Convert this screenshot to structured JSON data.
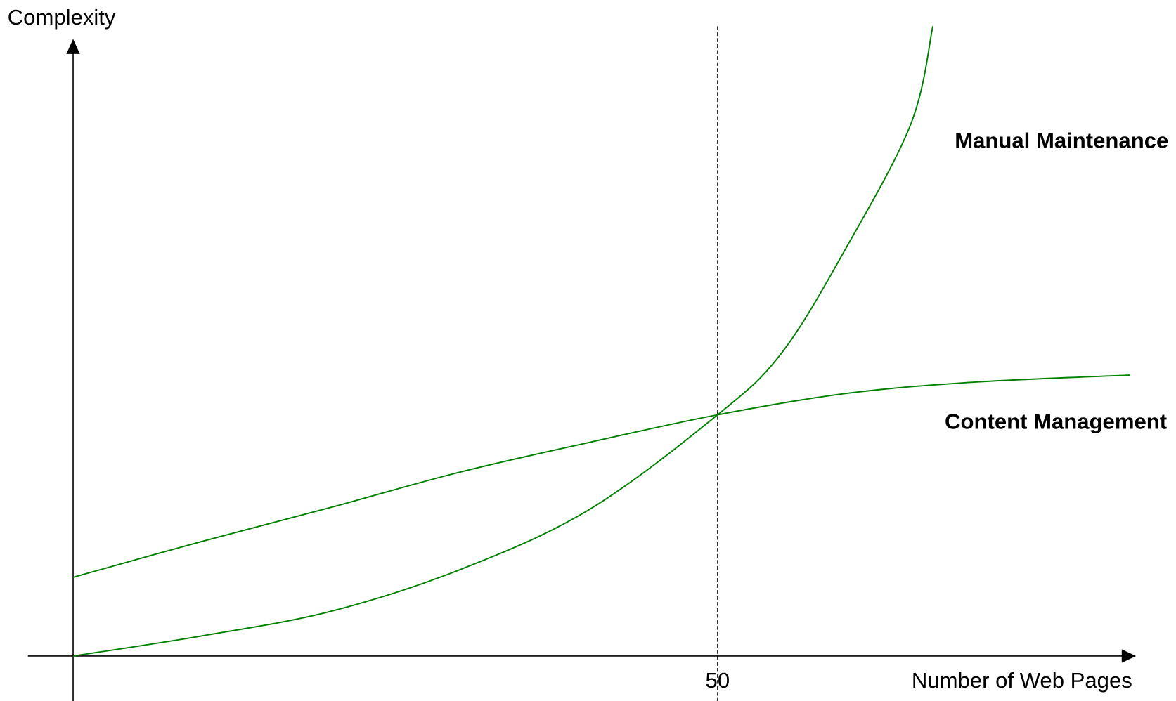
{
  "chart_data": {
    "type": "line",
    "x_label": "Number of Web Pages",
    "y_label": "Complexity",
    "xlim": [
      0,
      82
    ],
    "ylim": [
      0,
      100
    ],
    "xticks": [
      50
    ],
    "xtick_line": "dashed",
    "series": [
      {
        "name": "Manual Maintenance",
        "color": "#008000",
        "x": [
          0,
          10,
          20,
          30,
          40,
          50,
          55,
          60,
          65,
          66.7
        ],
        "values": [
          0,
          3.2,
          7.1,
          13.7,
          23.2,
          38.3,
          48.2,
          64.9,
          84.5,
          100
        ]
      },
      {
        "name": "Content Management",
        "color": "#008000",
        "x": [
          0,
          10,
          20,
          30,
          40,
          50,
          60,
          70,
          82
        ],
        "values": [
          12.5,
          18.2,
          23.6,
          29.2,
          33.9,
          38.3,
          41.7,
          43.5,
          44.6
        ]
      }
    ]
  }
}
